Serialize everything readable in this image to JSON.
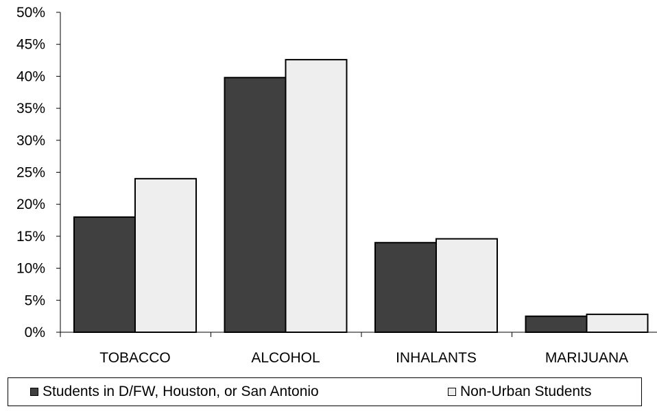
{
  "chart_data": {
    "type": "bar",
    "categories": [
      "TOBACCO",
      "ALCOHOL",
      "INHALANTS",
      "MARIJUANA"
    ],
    "series": [
      {
        "name": "Students in D/FW, Houston, or San Antonio",
        "values": [
          18,
          39.8,
          14,
          2.5
        ],
        "color": "#404040"
      },
      {
        "name": "Non-Urban Students",
        "values": [
          24,
          42.6,
          14.6,
          2.8
        ],
        "color": "#eeeeee"
      }
    ],
    "yticks": [
      "0%",
      "5%",
      "10%",
      "15%",
      "20%",
      "25%",
      "30%",
      "35%",
      "40%",
      "45%",
      "50%"
    ],
    "ylim": [
      0,
      50
    ],
    "legend_position": "bottom",
    "grid": false
  }
}
